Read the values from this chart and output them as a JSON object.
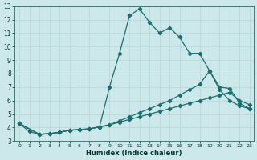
{
  "xlabel": "Humidex (Indice chaleur)",
  "bg_color": "#cce8ea",
  "grid_color": "#b8d8da",
  "line_color": "#1a6e6e",
  "xlim_min": -0.5,
  "xlim_max": 23.4,
  "ylim_min": 3,
  "ylim_max": 13,
  "xticks": [
    0,
    1,
    2,
    3,
    4,
    5,
    6,
    7,
    8,
    9,
    10,
    11,
    12,
    13,
    14,
    15,
    16,
    17,
    18,
    19,
    20,
    21,
    22,
    23
  ],
  "yticks": [
    3,
    4,
    5,
    6,
    7,
    8,
    9,
    10,
    11,
    12,
    13
  ],
  "line1_x": [
    0,
    1,
    2,
    3,
    4,
    5,
    6,
    7,
    8,
    9,
    10,
    11,
    12,
    13,
    14,
    15,
    16,
    17,
    18,
    19,
    20,
    21,
    22,
    23
  ],
  "line1_y": [
    4.3,
    3.7,
    3.5,
    3.55,
    3.65,
    3.8,
    3.85,
    3.9,
    4.05,
    7.0,
    9.5,
    12.3,
    12.8,
    11.8,
    11.0,
    11.4,
    10.7,
    9.5,
    9.5,
    8.2,
    6.8,
    6.0,
    5.6,
    5.4
  ],
  "line2_x": [
    0,
    2,
    3,
    4,
    5,
    6,
    7,
    8,
    9,
    10,
    11,
    12,
    13,
    14,
    15,
    16,
    17,
    18,
    19,
    20,
    21,
    22,
    23
  ],
  "line2_y": [
    4.3,
    3.5,
    3.55,
    3.65,
    3.8,
    3.85,
    3.9,
    4.05,
    4.2,
    4.5,
    4.8,
    5.1,
    5.4,
    5.7,
    6.0,
    6.4,
    6.8,
    7.2,
    8.2,
    7.0,
    6.9,
    5.8,
    5.4
  ],
  "line3_x": [
    0,
    2,
    3,
    4,
    5,
    6,
    7,
    8,
    9,
    10,
    11,
    12,
    13,
    14,
    15,
    16,
    17,
    18,
    19,
    20,
    21,
    22,
    23
  ],
  "line3_y": [
    4.3,
    3.5,
    3.55,
    3.65,
    3.8,
    3.85,
    3.9,
    4.05,
    4.2,
    4.4,
    4.6,
    4.8,
    5.0,
    5.2,
    5.4,
    5.6,
    5.8,
    6.0,
    6.2,
    6.4,
    6.6,
    6.0,
    5.7
  ]
}
